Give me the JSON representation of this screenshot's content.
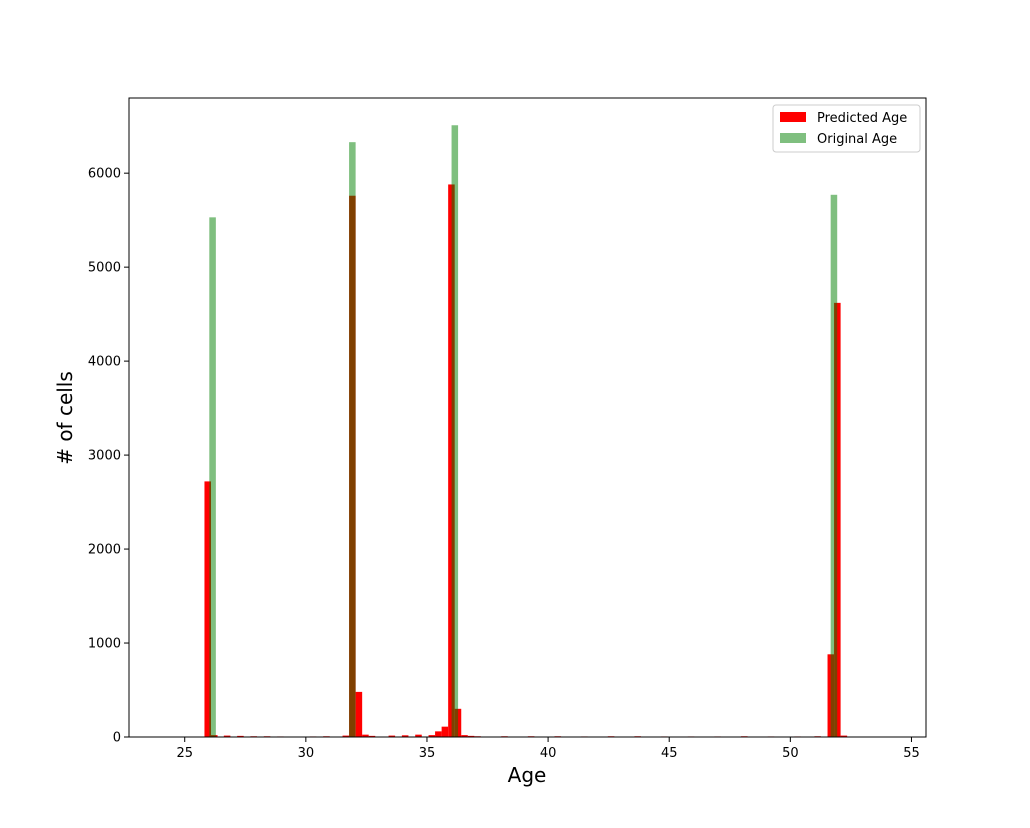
{
  "chart_data": {
    "type": "bar",
    "title": "",
    "xlabel": "Age",
    "ylabel": "# of cells",
    "xlim": [
      22.7,
      55.6
    ],
    "ylim": [
      0,
      6800
    ],
    "xticks": [
      25,
      30,
      35,
      40,
      45,
      50,
      55
    ],
    "yticks": [
      0,
      1000,
      2000,
      3000,
      4000,
      5000,
      6000
    ],
    "bin_width": 0.27,
    "grid": false,
    "legend_position": "top-right",
    "series": [
      {
        "name": "Predicted Age",
        "color": "#ff0000",
        "opacity": 1.0,
        "points": [
          [
            25.95,
            2720
          ],
          [
            26.22,
            20
          ],
          [
            26.75,
            15
          ],
          [
            27.3,
            12
          ],
          [
            27.85,
            8
          ],
          [
            28.4,
            8
          ],
          [
            28.95,
            6
          ],
          [
            30.3,
            6
          ],
          [
            30.85,
            8
          ],
          [
            31.65,
            15
          ],
          [
            31.92,
            5760
          ],
          [
            32.19,
            480
          ],
          [
            32.46,
            25
          ],
          [
            32.73,
            12
          ],
          [
            33.55,
            15
          ],
          [
            34.1,
            18
          ],
          [
            34.65,
            25
          ],
          [
            35.2,
            20
          ],
          [
            35.47,
            60
          ],
          [
            35.74,
            110
          ],
          [
            36.01,
            5880
          ],
          [
            36.28,
            300
          ],
          [
            36.55,
            20
          ],
          [
            36.82,
            12
          ],
          [
            37.09,
            8
          ],
          [
            38.2,
            8
          ],
          [
            39.3,
            8
          ],
          [
            40.4,
            8
          ],
          [
            41.5,
            6
          ],
          [
            42.6,
            8
          ],
          [
            43.7,
            8
          ],
          [
            44.8,
            6
          ],
          [
            45.9,
            6
          ],
          [
            47.0,
            6
          ],
          [
            48.1,
            8
          ],
          [
            49.2,
            6
          ],
          [
            50.3,
            6
          ],
          [
            51.13,
            8
          ],
          [
            51.67,
            880
          ],
          [
            51.94,
            4620
          ],
          [
            52.21,
            15
          ]
        ]
      },
      {
        "name": "Original Age",
        "color": "#008000",
        "opacity": 0.5,
        "points": [
          [
            26.15,
            5530
          ],
          [
            31.92,
            6330
          ],
          [
            36.15,
            6510
          ],
          [
            51.8,
            5770
          ]
        ]
      }
    ]
  }
}
